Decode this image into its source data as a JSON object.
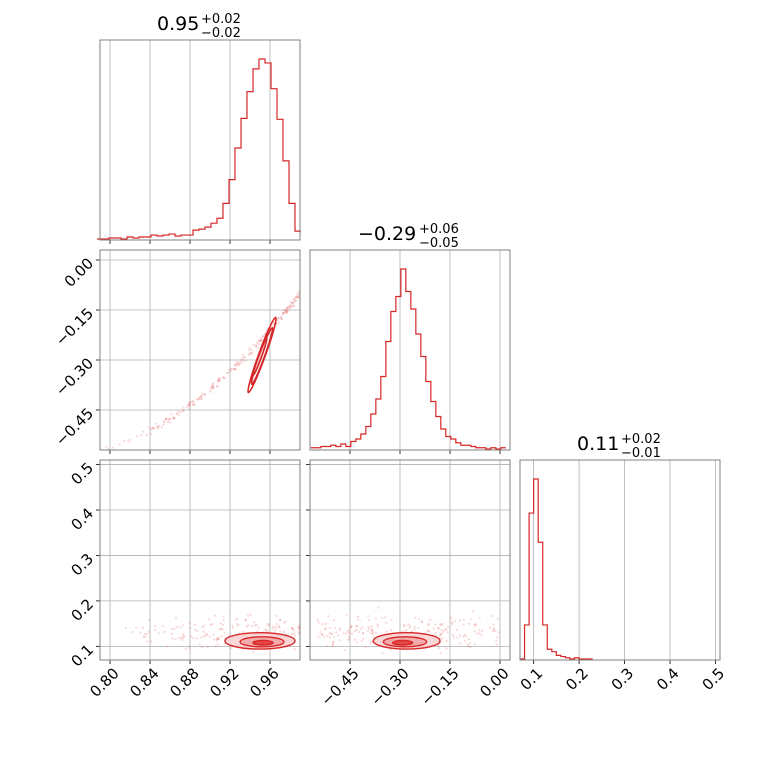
{
  "chart_data": [
    {
      "type": "histogram",
      "panel": "param-1-marginal",
      "title": {
        "value": "0.95",
        "plus": "+0.02",
        "minus": "−0.02"
      },
      "xlim": [
        0.79,
        0.99
      ],
      "bin_centers": [
        0.79,
        0.796,
        0.802,
        0.808,
        0.814,
        0.82,
        0.826,
        0.832,
        0.838,
        0.844,
        0.85,
        0.856,
        0.862,
        0.868,
        0.874,
        0.88,
        0.886,
        0.892,
        0.898,
        0.904,
        0.91,
        0.916,
        0.922,
        0.928,
        0.934,
        0.94,
        0.946,
        0.952,
        0.958,
        0.964,
        0.97,
        0.976,
        0.982,
        0.988
      ],
      "counts": [
        0,
        0,
        1,
        1,
        0,
        2,
        1,
        2,
        2,
        4,
        3,
        4,
        5,
        3,
        4,
        4,
        9,
        10,
        12,
        16,
        21,
        36,
        60,
        92,
        122,
        149,
        172,
        182,
        178,
        152,
        121,
        79,
        36,
        8
      ],
      "xticks": [
        "0.80",
        "0.84",
        "0.88",
        "0.92",
        "0.96"
      ]
    },
    {
      "type": "histogram",
      "panel": "param-2-marginal",
      "title": {
        "value": "−0.29",
        "plus": "+0.06",
        "minus": "−0.05"
      },
      "xlim": [
        -0.57,
        0.03
      ],
      "bin_centers": [
        -0.56,
        -0.545,
        -0.53,
        -0.515,
        -0.5,
        -0.485,
        -0.47,
        -0.455,
        -0.44,
        -0.425,
        -0.41,
        -0.395,
        -0.38,
        -0.365,
        -0.35,
        -0.335,
        -0.32,
        -0.305,
        -0.29,
        -0.275,
        -0.26,
        -0.245,
        -0.23,
        -0.215,
        -0.2,
        -0.185,
        -0.17,
        -0.155,
        -0.14,
        -0.125,
        -0.11,
        -0.095,
        -0.08,
        -0.065,
        -0.05,
        -0.035,
        -0.02,
        -0.005,
        0.01
      ],
      "counts": [
        1,
        1,
        2,
        2,
        3,
        2,
        4,
        2,
        6,
        8,
        12,
        18,
        28,
        40,
        58,
        86,
        110,
        122,
        144,
        126,
        112,
        92,
        74,
        54,
        38,
        26,
        16,
        10,
        8,
        5,
        3,
        3,
        2,
        1,
        1,
        0,
        1,
        0,
        1
      ],
      "xticks": [
        "−0.45",
        "−0.30",
        "−0.15",
        "0.00"
      ],
      "yticks": [
        "0.00",
        "−0.15",
        "−0.30",
        "−0.45"
      ]
    },
    {
      "type": "histogram",
      "panel": "param-3-marginal",
      "title": {
        "value": "0.11",
        "plus": "+0.02",
        "minus": "−0.01"
      },
      "xlim": [
        0.07,
        0.51
      ],
      "bin_centers": [
        0.075,
        0.085,
        0.095,
        0.105,
        0.115,
        0.125,
        0.135,
        0.145,
        0.155,
        0.165,
        0.175,
        0.185,
        0.195,
        0.205,
        0.215,
        0.225
      ],
      "counts": [
        0,
        28,
        120,
        148,
        96,
        28,
        8,
        6,
        3,
        2,
        1,
        0,
        1,
        0,
        0,
        0
      ],
      "xticks": [
        "0.1",
        "0.2",
        "0.3",
        "0.4",
        "0.5"
      ],
      "yticks": [
        "0.1",
        "0.2",
        "0.3",
        "0.4",
        "0.5"
      ]
    },
    {
      "type": "contour",
      "panel": "param-1-vs-param-2",
      "xlim": [
        0.79,
        0.99
      ],
      "ylim": [
        -0.57,
        0.03
      ],
      "levels": [
        {
          "cx": 0.95,
          "cy": -0.29,
          "sa": 0.02,
          "sb": 0.0045,
          "angle_deg": 70,
          "fill": "#f7c4c4"
        },
        {
          "cx": 0.952,
          "cy": -0.288,
          "sa": 0.03,
          "sb": 0.0075,
          "angle_deg": 70,
          "fill": "none"
        },
        {
          "cx": 0.952,
          "cy": -0.285,
          "sa": 0.04,
          "sb": 0.01,
          "angle_deg": 70,
          "fill": "none"
        }
      ],
      "ridge": {
        "x0": 0.79,
        "x1": 0.99,
        "y_at_x0": -0.57,
        "y_at_x1": -0.1
      },
      "color": "#d62728"
    },
    {
      "type": "contour",
      "panel": "param-1-vs-param-3",
      "xlim": [
        0.79,
        0.99
      ],
      "ylim": [
        0.07,
        0.51
      ],
      "levels": [
        {
          "cx": 0.953,
          "cy": 0.108,
          "sa": 0.01,
          "sb": 0.005,
          "fill": "#e23b3b"
        },
        {
          "cx": 0.952,
          "cy": 0.11,
          "sa": 0.022,
          "sb": 0.011,
          "fill": "#f4a6a6"
        },
        {
          "cx": 0.95,
          "cy": 0.112,
          "sa": 0.035,
          "sb": 0.018,
          "fill": "#fbd3d3"
        }
      ],
      "scatter_band": {
        "x0": 0.8,
        "x1": 0.99,
        "y_center": 0.13,
        "y_spread": 0.025
      },
      "color": "#d62728"
    },
    {
      "type": "contour",
      "panel": "param-2-vs-param-3",
      "xlim": [
        -0.57,
        0.03
      ],
      "ylim": [
        0.07,
        0.51
      ],
      "levels": [
        {
          "cx": -0.292,
          "cy": 0.108,
          "sa": 0.03,
          "sb": 0.005,
          "fill": "#e23b3b"
        },
        {
          "cx": -0.285,
          "cy": 0.11,
          "sa": 0.065,
          "sb": 0.011,
          "fill": "#f4a6a6"
        },
        {
          "cx": -0.28,
          "cy": 0.112,
          "sa": 0.1,
          "sb": 0.018,
          "fill": "#fbd3d3"
        }
      ],
      "scatter_band": {
        "x0": -0.55,
        "x1": 0.0,
        "y_center": 0.13,
        "y_spread": 0.025
      },
      "color": "#d62728"
    }
  ],
  "colors": {
    "accent": "#d62728",
    "grid": "#b0b0b0",
    "frame": "#808080"
  }
}
